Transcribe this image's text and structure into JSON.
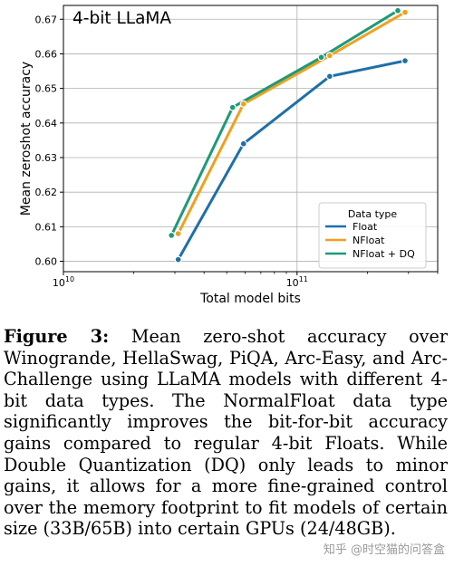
{
  "chart_data": {
    "type": "line",
    "title": "4-bit LLaMA",
    "xlabel": "Total model bits",
    "ylabel": "Mean zeroshot accuracy",
    "xscale": "log",
    "xlim": [
      10000000000.0,
      400000000000.0
    ],
    "ylim": [
      0.597,
      0.674
    ],
    "xticks": [
      {
        "value": 10000000000.0,
        "base": "10",
        "exp": "10"
      },
      {
        "value": 100000000000.0,
        "base": "10",
        "exp": "11"
      }
    ],
    "yticks": [
      0.6,
      0.61,
      0.62,
      0.63,
      0.64,
      0.65,
      0.66,
      0.67
    ],
    "ytick_labels": [
      "0.60",
      "0.61",
      "0.62",
      "0.63",
      "0.64",
      "0.65",
      "0.66",
      "0.67"
    ],
    "grid": "partial",
    "legend": {
      "title": "Data type",
      "placement": "lower-right"
    },
    "series": [
      {
        "name": "Float",
        "color": "#1f6fa8",
        "x": [
          31000000000.0,
          59000000000.0,
          138000000000.0,
          290000000000.0
        ],
        "y": [
          0.6005,
          0.634,
          0.6535,
          0.658
        ]
      },
      {
        "name": "NFloat",
        "color": "#f0a01e",
        "x": [
          31000000000.0,
          59000000000.0,
          138000000000.0,
          290000000000.0
        ],
        "y": [
          0.608,
          0.6455,
          0.6595,
          0.672
        ]
      },
      {
        "name": "NFloat + DQ",
        "color": "#1e9a78",
        "x": [
          29000000000.0,
          53000000000.0,
          127000000000.0,
          270000000000.0
        ],
        "y": [
          0.6075,
          0.6445,
          0.659,
          0.6725
        ]
      }
    ]
  },
  "caption": {
    "label": "Figure 3:",
    "text": "Mean zero-shot accuracy over Winogrande, HellaSwag, PiQA, Arc-Easy, and Arc-Challenge using LLaMA models with different 4-bit data types. The NormalFloat data type significantly improves the bit-for-bit accuracy gains compared to regular 4-bit Floats. While Double Quantization (DQ) only leads to minor gains, it allows for a more fine-grained control over the memory footprint to fit models of certain size (33B/65B) into certain GPUs (24/48GB)."
  },
  "watermark": "知乎 @时空猫的问答盒"
}
